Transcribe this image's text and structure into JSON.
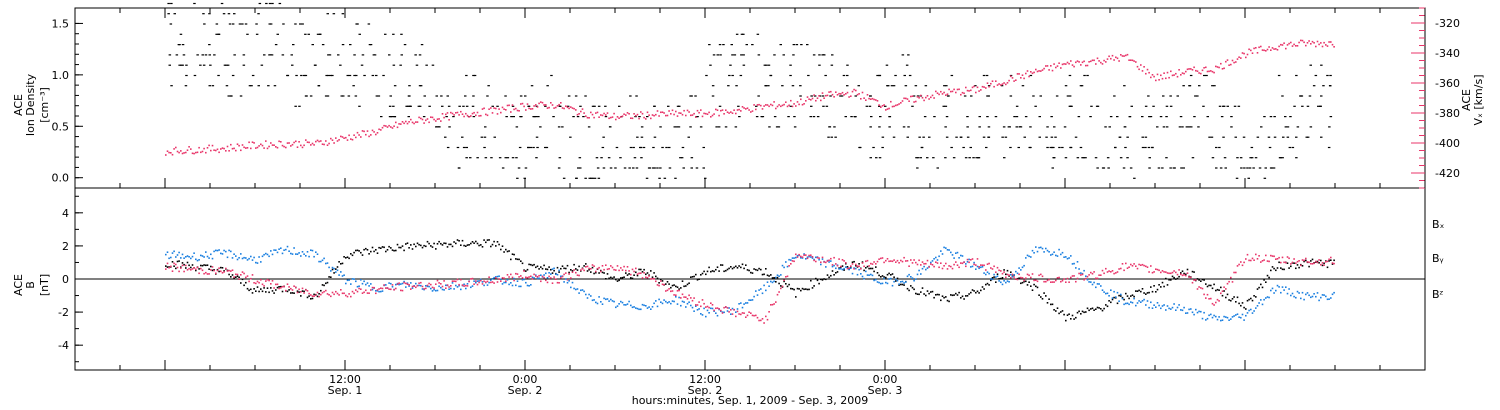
{
  "colors": {
    "density": "#000000",
    "speed": "#e8366a",
    "bx": "#000000",
    "by": "#1a7fe0",
    "bz": "#e8366a"
  },
  "footer": {
    "caption": "hours:minutes, Sep.  1, 2009 - Sep.  3, 2009"
  },
  "chart_data": [
    {
      "type": "scatter",
      "panel": "top",
      "ylabel_left_line1": "ACE",
      "ylabel_left_line2": "Ion Density",
      "ylabel_left_unit": "[cm⁻³]",
      "ylabel_right_line1": "ACE",
      "ylabel_right_line2": "Vₓ [km/s]",
      "ylim_left": [
        -0.1,
        1.65
      ],
      "ylim_right": [
        -430,
        -310
      ],
      "ticks_left": [
        "0.0",
        "0.5",
        "1.0",
        "1.5"
      ],
      "ticks_right": [
        "-420",
        "-400",
        "-380",
        "-360",
        "-340",
        "-320"
      ],
      "series": [
        {
          "key": "density",
          "x": [
            -12,
            -10,
            -8,
            -6,
            -4,
            -2,
            0,
            2,
            4,
            6,
            8,
            10,
            12,
            14,
            16,
            18,
            20,
            22,
            24,
            26,
            28,
            30,
            32,
            34,
            36,
            38,
            40,
            42,
            44,
            46,
            48,
            50,
            52,
            54,
            56,
            58,
            60,
            62,
            64
          ],
          "values": [
            1.3,
            1.3,
            1.2,
            1.3,
            1.1,
            1.2,
            1.1,
            1.0,
            0.9,
            0.5,
            0.6,
            0.4,
            0.6,
            0.4,
            0.3,
            0.4,
            0.3,
            0.4,
            0.9,
            1.0,
            0.9,
            1.0,
            0.8,
            0.6,
            0.8,
            0.5,
            0.6,
            0.6,
            0.6,
            0.5,
            0.6,
            0.5,
            0.4,
            0.5,
            0.6,
            0.3,
            0.2,
            0.6,
            0.7
          ]
        },
        {
          "key": "speed",
          "axis": "right",
          "x": [
            -12,
            -10,
            -8,
            -6,
            -4,
            -2,
            0,
            2,
            4,
            6,
            8,
            10,
            12,
            14,
            16,
            18,
            20,
            22,
            24,
            26,
            28,
            30,
            32,
            34,
            36,
            38,
            40,
            42,
            44,
            46,
            48,
            50,
            52,
            54,
            56,
            58,
            60,
            62,
            64
          ],
          "values": [
            -405,
            -404,
            -403,
            -401,
            -400,
            -400,
            -396,
            -392,
            -386,
            -383,
            -380,
            -378,
            -375,
            -374,
            -380,
            -382,
            -381,
            -380,
            -380,
            -378,
            -375,
            -373,
            -368,
            -366,
            -375,
            -370,
            -366,
            -364,
            -358,
            -352,
            -347,
            -345,
            -342,
            -356,
            -352,
            -350,
            -340,
            -335,
            -333
          ]
        }
      ]
    },
    {
      "type": "scatter",
      "panel": "bottom",
      "ylabel_line1": "ACE",
      "ylabel_line2": "B",
      "ylabel_unit": "[nT]",
      "ylim": [
        -5.5,
        5.5
      ],
      "ticks": [
        "-4",
        "-2",
        "0",
        "2",
        "4"
      ],
      "series": [
        {
          "key": "bx",
          "name": "Bₓ",
          "x": [
            -12,
            -10,
            -8,
            -6,
            -4,
            -2,
            0,
            2,
            4,
            6,
            8,
            10,
            12,
            14,
            16,
            18,
            20,
            22,
            24,
            26,
            28,
            30,
            32,
            34,
            36,
            38,
            40,
            42,
            44,
            46,
            48,
            50,
            52,
            54,
            56,
            58,
            60,
            62,
            64
          ],
          "values": [
            1.0,
            0.8,
            0.5,
            -0.7,
            -0.5,
            -1.0,
            1.5,
            1.8,
            2.0,
            2.1,
            2.2,
            2.2,
            0.7,
            0.6,
            0.8,
            0.0,
            0.5,
            -0.5,
            0.5,
            0.8,
            0.5,
            -0.8,
            0.2,
            1.0,
            0.3,
            -0.6,
            -1.2,
            -0.8,
            0.5,
            -0.5,
            -2.3,
            -1.8,
            -1.0,
            -0.5,
            0.5,
            -0.5,
            -1.6,
            0.8,
            1.0
          ]
        },
        {
          "key": "by",
          "name": "Bᵧ",
          "x": [
            -12,
            -10,
            -8,
            -6,
            -4,
            -2,
            0,
            2,
            4,
            6,
            8,
            10,
            12,
            14,
            16,
            18,
            20,
            22,
            24,
            26,
            28,
            30,
            32,
            34,
            36,
            38,
            40,
            42,
            44,
            46,
            48,
            50,
            52,
            54,
            56,
            58,
            60,
            62,
            64
          ],
          "values": [
            1.5,
            1.4,
            1.6,
            1.2,
            1.8,
            1.5,
            0.0,
            -0.5,
            -0.3,
            -0.5,
            -0.3,
            0.0,
            -0.2,
            0.5,
            -1.0,
            -1.5,
            -1.6,
            -1.2,
            -2.0,
            -1.8,
            -0.5,
            1.5,
            1.0,
            0.5,
            -0.2,
            0.2,
            1.8,
            0.8,
            -0.2,
            1.8,
            1.6,
            -0.3,
            -1.3,
            -1.5,
            -1.8,
            -2.4,
            -2.2,
            -0.5,
            -1.0
          ]
        },
        {
          "key": "bz",
          "name": "Bᶻ",
          "x": [
            -12,
            -10,
            -8,
            -6,
            -4,
            -2,
            0,
            2,
            4,
            6,
            8,
            10,
            12,
            14,
            16,
            18,
            20,
            22,
            24,
            26,
            28,
            30,
            32,
            34,
            36,
            38,
            40,
            42,
            44,
            46,
            48,
            50,
            52,
            54,
            56,
            58,
            60,
            62,
            64
          ],
          "values": [
            0.8,
            0.6,
            0.5,
            0.0,
            -0.5,
            -0.8,
            -0.8,
            -0.6,
            -0.4,
            -0.3,
            -0.2,
            0.0,
            0.3,
            0.0,
            0.6,
            0.8,
            0.3,
            -0.8,
            -1.5,
            -2.0,
            -2.4,
            1.5,
            1.2,
            0.8,
            1.3,
            1.0,
            0.8,
            1.1,
            0.3,
            0.1,
            0.0,
            0.3,
            0.8,
            0.6,
            0.4,
            -1.5,
            1.4,
            1.2,
            1.1
          ]
        }
      ]
    }
  ],
  "x_axis": {
    "xlim": [
      -18,
      72
    ],
    "major_ticks": [
      {
        "x": 0,
        "label_line1": "12:00",
        "label_line2": "Sep. 1"
      },
      {
        "x": 12,
        "label_line1": "0:00",
        "label_line2": "Sep. 2"
      },
      {
        "x": 24,
        "label_line1": "12:00",
        "label_line2": "Sep. 2"
      },
      {
        "x": 36,
        "label_line1": "0:00",
        "label_line2": "Sep. 3"
      }
    ]
  }
}
